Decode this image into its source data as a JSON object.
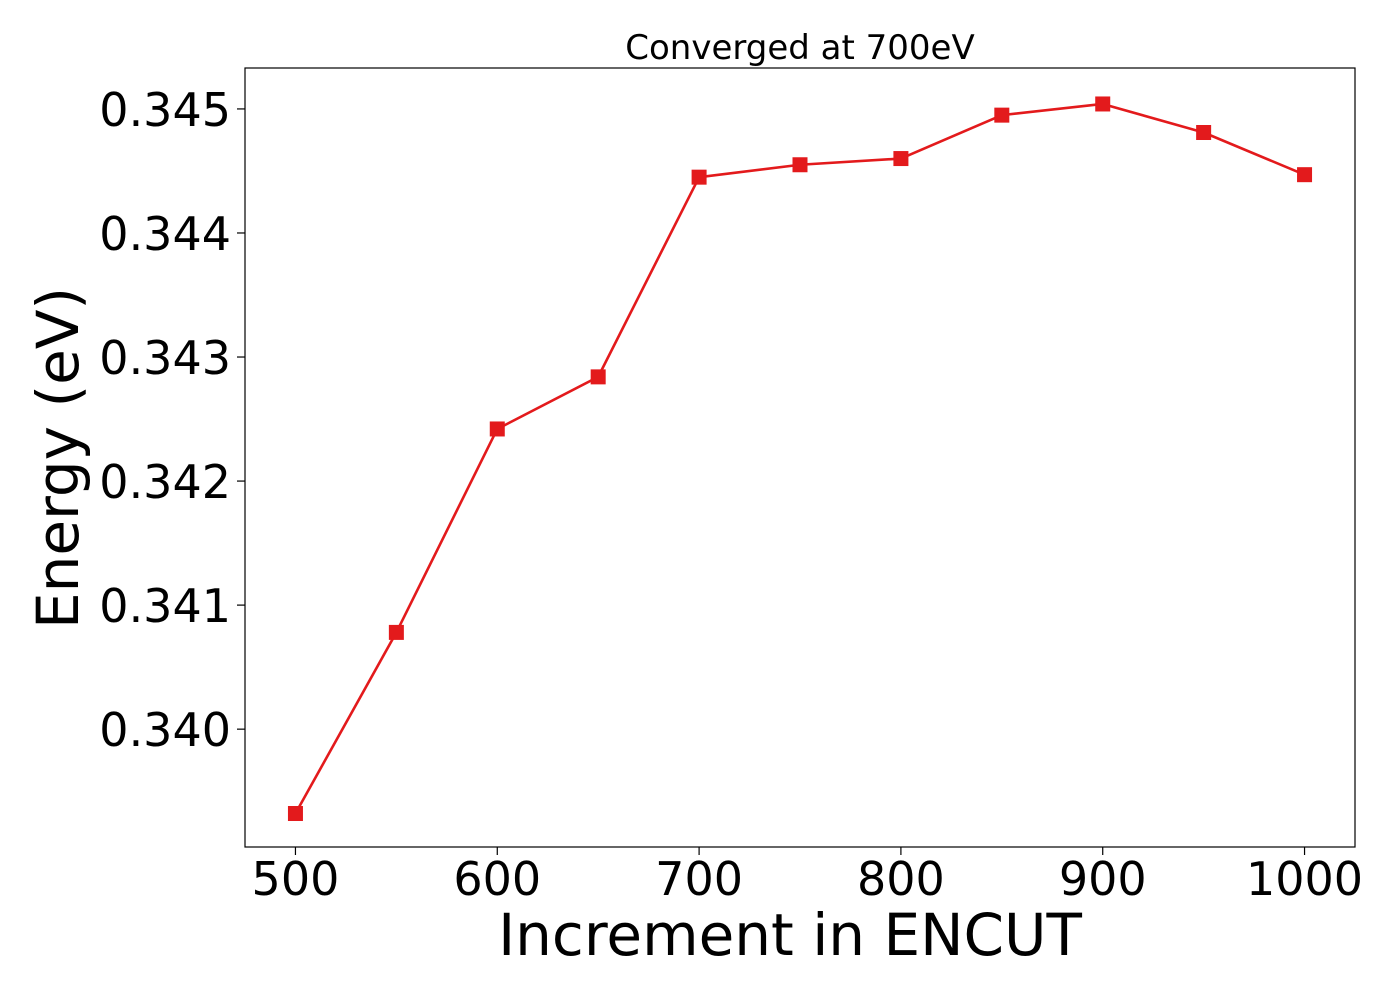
{
  "chart_data": {
    "type": "line",
    "title": "Converged at 700eV",
    "xlabel": "Increment in ENCUT",
    "ylabel": "Energy (eV)",
    "x": [
      500,
      550,
      600,
      650,
      700,
      750,
      800,
      850,
      900,
      950,
      1000
    ],
    "series": [
      {
        "values": [
          0.33932,
          0.34078,
          0.34242,
          0.34284,
          0.34445,
          0.34455,
          0.3446,
          0.34495,
          0.34504,
          0.34481,
          0.34447
        ],
        "color": "#e31a1c",
        "marker": "square"
      }
    ],
    "xticks": [
      500,
      600,
      700,
      800,
      900,
      1000
    ],
    "xtick_labels": [
      "500",
      "600",
      "700",
      "800",
      "900",
      "1000"
    ],
    "yticks": [
      0.34,
      0.341,
      0.342,
      0.343,
      0.344,
      0.345
    ],
    "ytick_labels": [
      "0.340",
      "0.341",
      "0.342",
      "0.343",
      "0.344",
      "0.345"
    ],
    "xlim": [
      475,
      1025
    ],
    "ylim": [
      0.33905,
      0.34533
    ],
    "grid": false,
    "legend": false
  }
}
